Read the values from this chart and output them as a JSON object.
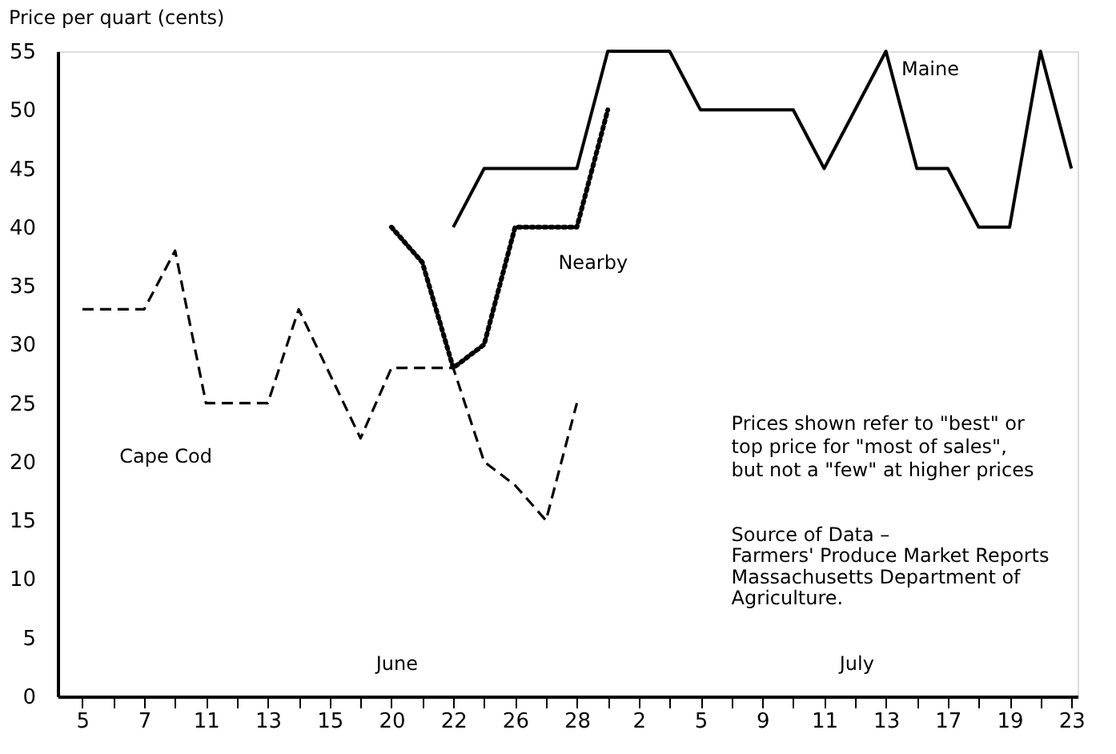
{
  "chart_data": {
    "type": "line",
    "ylabel": "Price per quart (cents)",
    "categories": [
      "5",
      null,
      "7",
      null,
      "11",
      null,
      "13",
      null,
      "15",
      null,
      "20",
      null,
      "22",
      null,
      "26",
      null,
      "28",
      null,
      "2",
      null,
      "5",
      null,
      "9",
      null,
      "11",
      null,
      "13",
      null,
      "17",
      null,
      "19",
      null,
      "23"
    ],
    "ylim": [
      0,
      55
    ],
    "yticks": [
      0,
      5,
      10,
      15,
      20,
      25,
      30,
      35,
      40,
      45,
      50,
      55
    ],
    "marker": "none",
    "series": [
      {
        "name": "Cape Cod",
        "color": "#000000",
        "line_style": "dashed",
        "values": [
          33,
          33,
          33,
          38,
          25,
          25,
          25,
          33,
          27.5,
          22,
          28,
          28,
          28,
          20,
          18,
          15,
          25,
          null,
          null,
          null,
          null,
          null,
          null,
          null,
          null,
          null,
          null,
          null,
          null,
          null,
          null,
          null,
          null
        ]
      },
      {
        "name": "Nearby",
        "color": "#000000",
        "line_style": "dotted",
        "values": [
          null,
          null,
          null,
          null,
          null,
          null,
          null,
          null,
          null,
          null,
          40,
          37,
          28,
          30,
          40,
          40,
          40,
          50,
          null,
          null,
          null,
          null,
          null,
          null,
          null,
          null,
          null,
          null,
          null,
          null,
          null,
          null,
          null
        ]
      },
      {
        "name": "Maine",
        "color": "#000000",
        "line_style": "solid",
        "values": [
          null,
          null,
          null,
          null,
          null,
          null,
          null,
          null,
          null,
          null,
          null,
          null,
          40,
          45,
          45,
          45,
          45,
          55,
          55,
          55,
          50,
          50,
          50,
          50,
          45,
          50,
          55,
          45,
          45,
          40,
          40,
          55,
          45
        ]
      }
    ],
    "annotations": [
      "June",
      "July",
      "Prices shown refer to \"best\" or",
      "top price for \"most of sales\",",
      "but not a \"few\" at higher prices",
      "Source of Data –",
      "Farmers' Produce Market Reports",
      "Massachusetts Department of",
      "Agriculture."
    ]
  }
}
